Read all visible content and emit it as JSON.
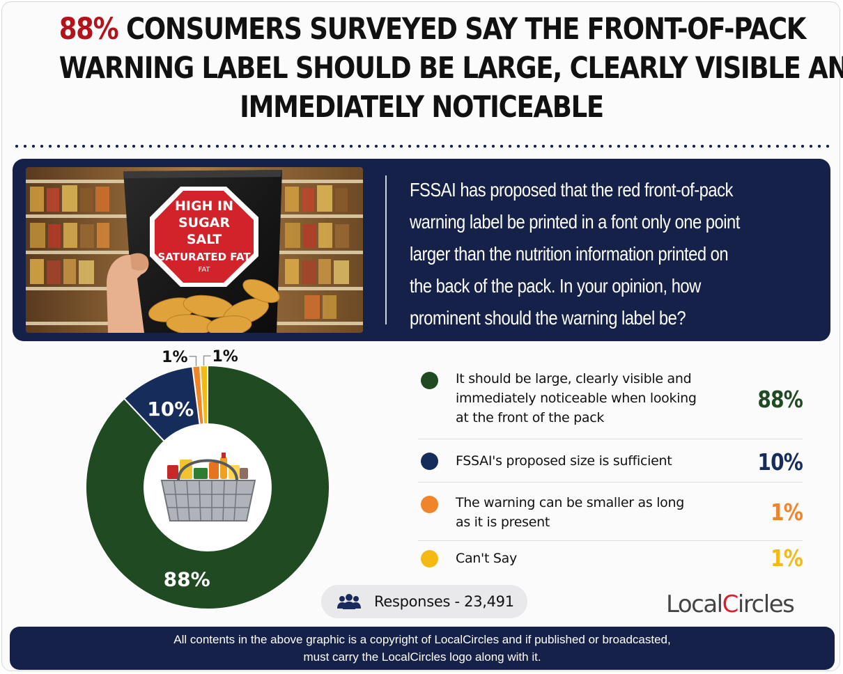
{
  "headline": {
    "highlight": "88%",
    "line1_rest": " CONSUMERS SURVEYED SAY THE FRONT-OF-PACK",
    "line2": "WARNING LABEL SHOULD BE LARGE, CLEARLY VISIBLE AND",
    "line3": "IMMEDIATELY NOTICEABLE"
  },
  "photo": {
    "sign_lines": [
      "HIGH IN",
      "SUGAR",
      "SALT",
      "SATURATED FAT",
      "FAT"
    ]
  },
  "question": {
    "lines": [
      "FSSAI has proposed that the red front-of-pack",
      "warning label be printed in a font only one point",
      "larger than the nutrition information printed on",
      "the back of the pack. In your opinion, how",
      "prominent should the warning label be?"
    ]
  },
  "colors": {
    "green": "#1f4a22",
    "navy": "#162d5c",
    "orange": "#f08428",
    "yellow": "#f5b914",
    "accent_red": "#b3131b"
  },
  "chart_data": {
    "type": "pie",
    "donut": true,
    "series": [
      {
        "name": "It should be large, clearly visible and immediately noticeable when looking at the front of the pack",
        "value": 88,
        "label": "88%",
        "color": "#1f4a22"
      },
      {
        "name": "FSSAI's proposed size is sufficient",
        "value": 10,
        "label": "10%",
        "color": "#162d5c"
      },
      {
        "name": "The warning can be smaller as long as it is present",
        "value": 1,
        "label": "1%",
        "color": "#f08428"
      },
      {
        "name": "Can't Say",
        "value": 1,
        "label": "1%",
        "color": "#f5b914"
      }
    ]
  },
  "legend": [
    {
      "lines": [
        "It should be large, clearly visible and",
        "immediately noticeable when looking",
        "at the front of the pack"
      ],
      "value": "88%",
      "color": "#1f4a22"
    },
    {
      "lines": [
        "FSSAI's proposed size is sufficient"
      ],
      "value": "10%",
      "color": "#162d5c"
    },
    {
      "lines": [
        "The warning can be smaller as long",
        "as it is present"
      ],
      "value": "1%",
      "color": "#f08428"
    },
    {
      "lines": [
        "Can't Say"
      ],
      "value": "1%",
      "color": "#f5b914"
    }
  ],
  "responses": {
    "label": "Responses - 23,491",
    "icon": "users-icon"
  },
  "logo": {
    "part1": "Local",
    "letter": "C",
    "part2": "ircles"
  },
  "footer": {
    "line1": "All contents in the above graphic is a copyright of LocalCircles and if published or broadcasted,",
    "line2": "must carry the LocalCircles logo along with it."
  }
}
